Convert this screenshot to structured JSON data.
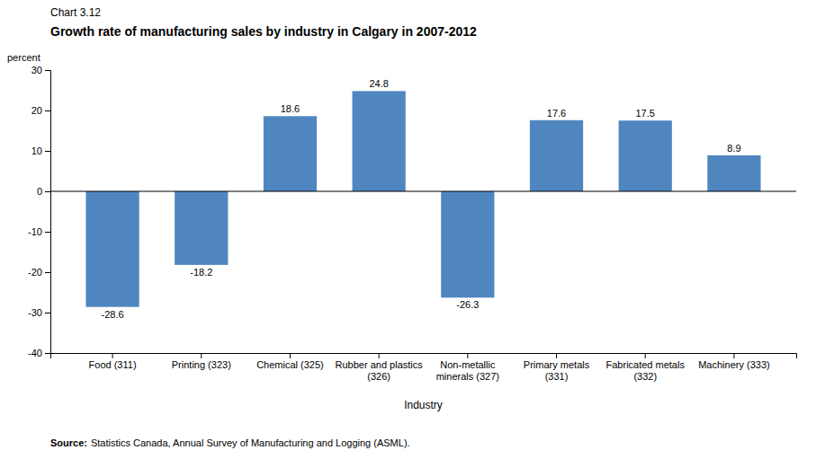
{
  "chart_data": {
    "type": "bar",
    "chart_label": "Chart 3.12",
    "title": "Growth rate of manufacturing sales by industry in Calgary in 2007-2012",
    "ylabel": "percent",
    "xlabel": "Industry",
    "source_label": "Source:",
    "source": "Statistics Canada, Annual Survey of Manufacturing and Logging (ASML).",
    "categories": [
      "Food (311)",
      "Printing (323)",
      "Chemical (325)",
      "Rubber and plastics\n(326)",
      "Non-metallic\nminerals (327)",
      "Primary metals\n(331)",
      "Fabricated metals\n(332)",
      "Machinery (333)"
    ],
    "values": [
      -28.6,
      -18.2,
      18.6,
      24.8,
      -26.3,
      17.6,
      17.5,
      8.9
    ],
    "color": "#4f86c0",
    "ylim": [
      -40,
      30
    ],
    "yticks": [
      -40,
      -30,
      -20,
      -10,
      0,
      10,
      20,
      30
    ],
    "grid": false,
    "data_labels": true
  }
}
